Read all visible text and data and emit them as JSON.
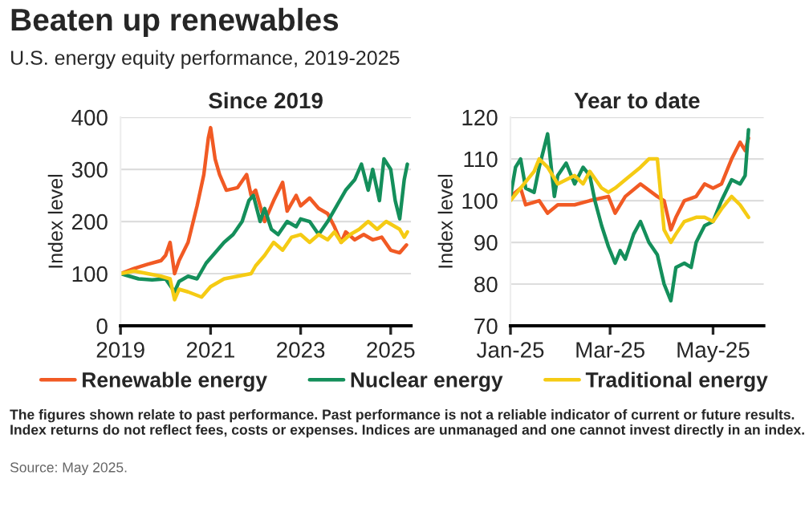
{
  "chart_data": [
    {
      "type": "line",
      "title": "Since 2019",
      "ylabel": "Index level",
      "annotations": [
        "Beaten up renewables",
        "U.S. energy equity performance, 2019-2025",
        "The figures shown relate to past performance. Past performance is not a reliable indicator of current or future results. Index returns do not reflect fees, costs or expenses. Indices are unmanaged and one cannot invest directly in an index.",
        "Source: May 2025."
      ],
      "xlim": [
        2019,
        2025.45
      ],
      "xticks": [
        2019,
        2021,
        2023,
        2025
      ],
      "ylim": [
        0,
        400
      ],
      "yticks": [
        0,
        100,
        200,
        300,
        400
      ],
      "grid": "y",
      "legend": "bottom",
      "series": [
        {
          "name": "Renewable energy",
          "color": "#f15a24",
          "x": [
            2019,
            2019.3,
            2019.6,
            2019.9,
            2020.0,
            2020.1,
            2020.2,
            2020.3,
            2020.5,
            2020.7,
            2020.85,
            2020.95,
            2021.0,
            2021.1,
            2021.2,
            2021.35,
            2021.6,
            2021.8,
            2021.9,
            2022.0,
            2022.2,
            2022.4,
            2022.6,
            2022.7,
            2022.9,
            2023.0,
            2023.2,
            2023.4,
            2023.6,
            2023.75,
            2023.9,
            2024.0,
            2024.2,
            2024.4,
            2024.6,
            2024.8,
            2025.0,
            2025.2,
            2025.35
          ],
          "values": [
            100,
            110,
            118,
            125,
            135,
            160,
            100,
            125,
            160,
            230,
            290,
            360,
            380,
            320,
            290,
            260,
            265,
            290,
            250,
            260,
            200,
            240,
            275,
            220,
            250,
            230,
            245,
            225,
            215,
            190,
            160,
            180,
            165,
            175,
            165,
            170,
            145,
            140,
            155
          ]
        },
        {
          "name": "Nuclear energy",
          "color": "#148f5b",
          "x": [
            2019,
            2019.2,
            2019.4,
            2019.7,
            2020.0,
            2020.2,
            2020.3,
            2020.5,
            2020.7,
            2020.9,
            2021.1,
            2021.3,
            2021.5,
            2021.7,
            2021.85,
            2021.95,
            2022.1,
            2022.2,
            2022.35,
            2022.5,
            2022.7,
            2022.9,
            2023.0,
            2023.2,
            2023.4,
            2023.6,
            2023.8,
            2024.0,
            2024.2,
            2024.35,
            2024.5,
            2024.6,
            2024.75,
            2024.85,
            2025.0,
            2025.1,
            2025.2,
            2025.3,
            2025.37
          ],
          "values": [
            100,
            95,
            90,
            88,
            90,
            65,
            85,
            95,
            90,
            120,
            140,
            160,
            175,
            200,
            240,
            250,
            200,
            225,
            185,
            175,
            200,
            190,
            205,
            200,
            175,
            200,
            230,
            260,
            280,
            310,
            260,
            300,
            240,
            320,
            300,
            240,
            205,
            280,
            310
          ]
        },
        {
          "name": "Traditional energy",
          "color": "#f5cb14",
          "x": [
            2019,
            2019.3,
            2019.6,
            2019.9,
            2020.1,
            2020.2,
            2020.3,
            2020.5,
            2020.8,
            2021.0,
            2021.3,
            2021.6,
            2021.9,
            2022.0,
            2022.2,
            2022.4,
            2022.6,
            2022.8,
            2023.0,
            2023.2,
            2023.4,
            2023.6,
            2023.75,
            2023.9,
            2024.1,
            2024.3,
            2024.5,
            2024.7,
            2024.9,
            2025.0,
            2025.2,
            2025.3,
            2025.37
          ],
          "values": [
            100,
            105,
            100,
            95,
            90,
            50,
            70,
            65,
            55,
            75,
            90,
            95,
            100,
            115,
            135,
            160,
            145,
            170,
            175,
            160,
            175,
            165,
            180,
            160,
            175,
            185,
            200,
            185,
            200,
            195,
            185,
            170,
            180
          ]
        }
      ]
    },
    {
      "type": "line",
      "title": "Year to date",
      "ylabel": "Index level",
      "xlim": [
        "2025-01-01",
        "2025-05-31"
      ],
      "xticks": [
        {
          "value": "2025-01-01",
          "label": "Jan-25"
        },
        {
          "value": "2025-03-01",
          "label": "Mar-25"
        },
        {
          "value": "2025-05-01",
          "label": "May-25"
        }
      ],
      "ylim": [
        70,
        120
      ],
      "yticks": [
        70,
        80,
        90,
        100,
        110,
        120
      ],
      "grid": "y",
      "series": [
        {
          "color": "#f15a24",
          "x": [
            "2025-01-01",
            "2025-01-07",
            "2025-01-10",
            "2025-01-18",
            "2025-01-23",
            "2025-01-29",
            "2025-02-08",
            "2025-02-17",
            "2025-02-28",
            "2025-03-04",
            "2025-03-10",
            "2025-03-19",
            "2025-03-29",
            "2025-04-02",
            "2025-04-06",
            "2025-04-09",
            "2025-04-14",
            "2025-04-21",
            "2025-04-26",
            "2025-05-01",
            "2025-05-06",
            "2025-05-12",
            "2025-05-17",
            "2025-05-20",
            "2025-05-22"
          ],
          "values": [
            101,
            103,
            99,
            100,
            97,
            99,
            99,
            100,
            101,
            97,
            101,
            104,
            101,
            100,
            93,
            96,
            100,
            101,
            104,
            103,
            104,
            110,
            114,
            112,
            115
          ]
        },
        {
          "color": "#148f5b",
          "x": [
            "2025-01-01",
            "2025-01-04",
            "2025-01-07",
            "2025-01-10",
            "2025-01-15",
            "2025-01-18",
            "2025-01-23",
            "2025-01-27",
            "2025-01-29",
            "2025-02-03",
            "2025-02-08",
            "2025-02-13",
            "2025-02-17",
            "2025-02-20",
            "2025-02-24",
            "2025-02-28",
            "2025-03-04",
            "2025-03-07",
            "2025-03-10",
            "2025-03-15",
            "2025-03-19",
            "2025-03-24",
            "2025-03-29",
            "2025-04-02",
            "2025-04-06",
            "2025-04-09",
            "2025-04-14",
            "2025-04-18",
            "2025-04-21",
            "2025-04-26",
            "2025-05-01",
            "2025-05-06",
            "2025-05-12",
            "2025-05-17",
            "2025-05-20",
            "2025-05-22"
          ],
          "values": [
            101,
            108,
            110,
            103,
            102,
            108,
            116,
            101,
            106,
            109,
            104,
            108,
            106,
            100,
            94,
            89,
            85,
            88,
            86,
            92,
            95,
            90,
            87,
            80,
            76,
            84,
            85,
            84,
            90,
            94,
            95,
            100,
            105,
            104,
            106,
            117
          ]
        },
        {
          "color": "#f5cb14",
          "x": [
            "2025-01-01",
            "2025-01-07",
            "2025-01-15",
            "2025-01-18",
            "2025-01-23",
            "2025-01-29",
            "2025-02-08",
            "2025-02-13",
            "2025-02-17",
            "2025-02-24",
            "2025-02-28",
            "2025-03-04",
            "2025-03-10",
            "2025-03-19",
            "2025-03-24",
            "2025-03-29",
            "2025-04-02",
            "2025-04-06",
            "2025-04-09",
            "2025-04-14",
            "2025-04-21",
            "2025-04-26",
            "2025-05-01",
            "2025-05-06",
            "2025-05-12",
            "2025-05-17",
            "2025-05-22"
          ],
          "values": [
            100,
            103,
            107,
            110,
            108,
            104,
            106,
            104,
            107,
            103,
            102,
            103,
            105,
            108,
            110,
            110,
            93,
            90,
            92,
            95,
            96,
            96,
            95,
            98,
            101,
            99,
            96
          ]
        }
      ]
    }
  ]
}
